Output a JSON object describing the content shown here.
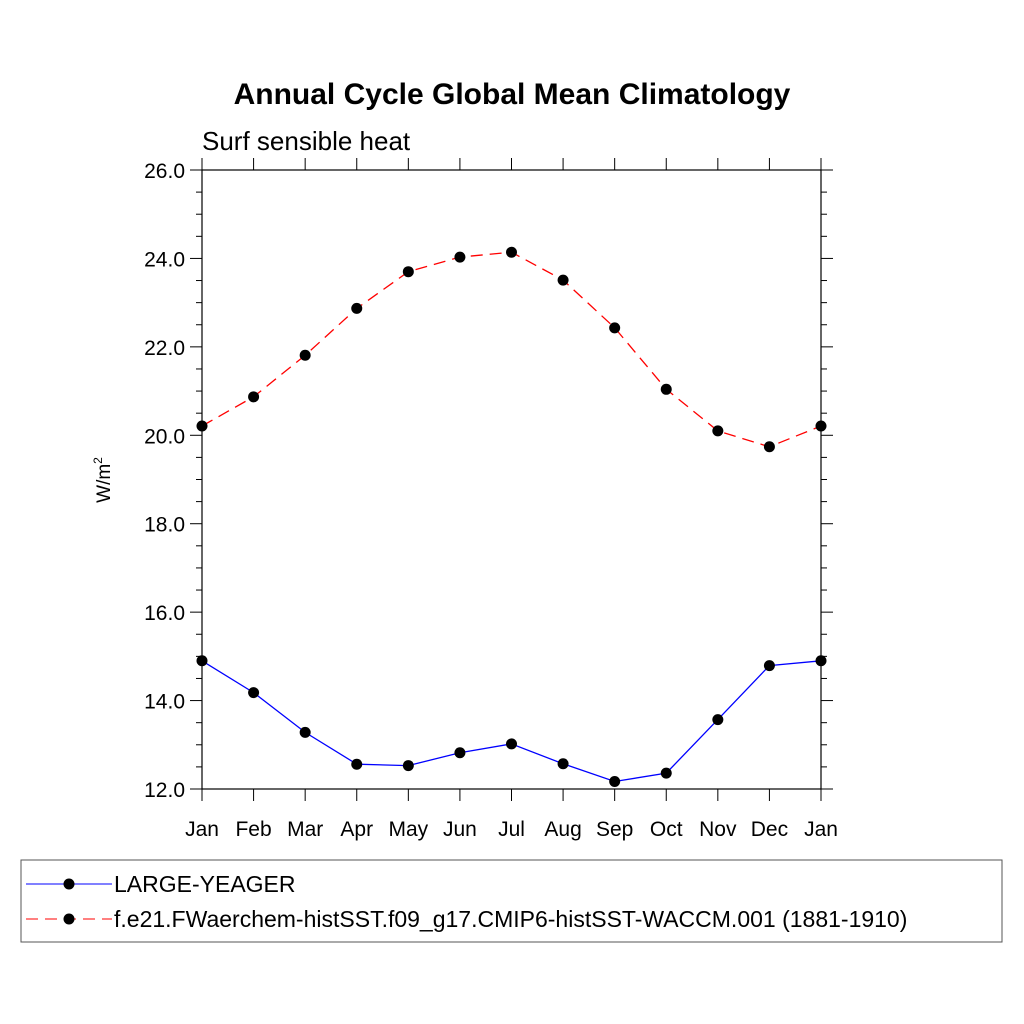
{
  "chart_data": {
    "type": "line",
    "title": "Annual Cycle Global Mean Climatology",
    "subtitle": "Surf sensible heat",
    "xlabel": "",
    "ylabel_base": "W/m",
    "ylabel_sup": "2",
    "categories": [
      "Jan",
      "Feb",
      "Mar",
      "Apr",
      "May",
      "Jun",
      "Jul",
      "Aug",
      "Sep",
      "Oct",
      "Nov",
      "Dec",
      "Jan"
    ],
    "ylim": [
      12.0,
      26.0
    ],
    "yticks": [
      "12.0",
      "14.0",
      "16.0",
      "18.0",
      "20.0",
      "22.0",
      "24.0",
      "26.0"
    ],
    "series": [
      {
        "name": "LARGE-YEAGER",
        "color": "#0000ff",
        "dash": "solid",
        "values": [
          14.9,
          14.18,
          13.28,
          12.56,
          12.53,
          12.82,
          13.02,
          12.57,
          12.17,
          12.36,
          13.57,
          14.79,
          14.9
        ]
      },
      {
        "name": "f.e21.FWaerchem-histSST.f09_g17.CMIP6-histSST-WACCM.001 (1881-1910)",
        "color": "#ff0000",
        "dash": "dashed",
        "values": [
          20.21,
          20.87,
          21.81,
          22.87,
          23.7,
          24.03,
          24.14,
          23.51,
          22.43,
          21.04,
          20.1,
          19.74,
          20.21
        ]
      }
    ],
    "grid": false,
    "legend_position": "bottom"
  }
}
